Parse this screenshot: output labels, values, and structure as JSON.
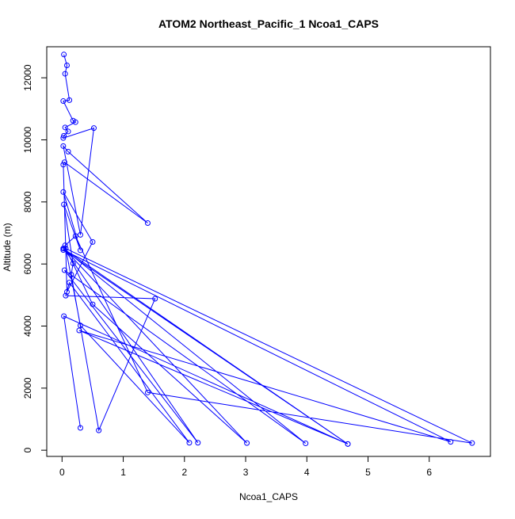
{
  "chart_data": {
    "type": "line",
    "title": "ATOM2 Northeast_Pacific_1 Ncoa1_CAPS",
    "xlabel": "Ncoa1_CAPS",
    "ylabel": "Altitude (m)",
    "xlim": [
      -0.25,
      7.0
    ],
    "ylim": [
      -200,
      13000
    ],
    "x_ticks": [
      0,
      1,
      2,
      3,
      4,
      5,
      6
    ],
    "y_ticks": [
      0,
      2000,
      4000,
      6000,
      8000,
      10000,
      12000
    ],
    "grid": false,
    "legend": "none",
    "colors": {
      "series": "#0000ff",
      "axis": "#000000",
      "background": "#ffffff"
    },
    "marker": "open-circle",
    "series": [
      {
        "x": [
          0.03,
          0.08,
          0.05,
          0.12,
          0.02,
          0.18,
          0.22,
          0.05,
          0.1,
          0.03,
          0.02,
          0.52,
          0.3,
          0.02,
          0.1,
          1.4,
          0.04,
          0.02,
          0.08,
          0.5,
          0.02,
          0.3,
          0.03,
          0.18,
          0.15,
          0.6,
          1.52,
          0.06,
          0.12,
          2.08,
          0.3,
          0.05,
          0.22,
          1.4,
          6.7,
          0.06,
          0.5,
          3.02,
          0.03,
          2.22,
          0.04,
          3.98,
          0.02,
          4.67,
          0.02,
          6.35,
          0.28,
          4.67,
          0.03,
          0.3
        ],
        "y": [
          12750,
          12400,
          12130,
          11280,
          11250,
          10620,
          10570,
          10400,
          10270,
          10130,
          10060,
          10380,
          6940,
          9800,
          9620,
          7320,
          9280,
          9200,
          5100,
          6710,
          8320,
          6440,
          7920,
          6020,
          5660,
          640,
          4880,
          4980,
          5400,
          240,
          4020,
          6600,
          6900,
          1860,
          230,
          6500,
          4700,
          230,
          6500,
          240,
          5800,
          220,
          6500,
          200,
          6450,
          270,
          3860,
          200,
          4320,
          720
        ]
      }
    ]
  }
}
